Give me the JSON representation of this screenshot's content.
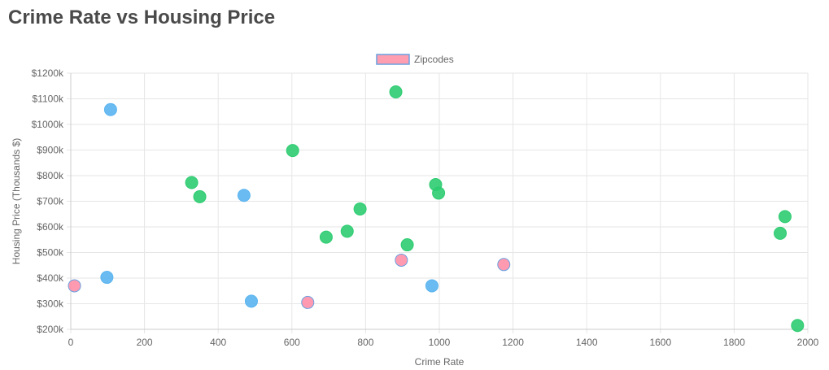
{
  "page": {
    "title": "Crime Rate vs Housing Price"
  },
  "chart_data": {
    "type": "scatter",
    "xlabel": "Crime Rate",
    "ylabel": "Housing Price (Thousands $)",
    "xlim": [
      0,
      2000
    ],
    "ylim": [
      200,
      1200
    ],
    "x_ticks": [
      0,
      200,
      400,
      600,
      800,
      1000,
      1200,
      1400,
      1600,
      1800,
      2000
    ],
    "x_tick_labels": [
      "0",
      "200",
      "400",
      "600",
      "800",
      "1000",
      "1200",
      "1400",
      "1600",
      "1800",
      "2000"
    ],
    "y_ticks": [
      200,
      300,
      400,
      500,
      600,
      700,
      800,
      900,
      1000,
      1100,
      1200
    ],
    "y_tick_labels": [
      "$200k",
      "$300k",
      "$400k",
      "$500k",
      "$600k",
      "$700k",
      "$800k",
      "$900k",
      "$1000k",
      "$1100k",
      "$1200k"
    ],
    "grid": true,
    "legend": {
      "position": "top",
      "label": "Zipcodes",
      "color": "#ff9db1",
      "border_color": "#6aa1e0"
    },
    "colors": {
      "blue": "#5ab4f0",
      "green": "#2ecc71",
      "pink": "#ff8fa8"
    },
    "series": [
      {
        "name": "Zipcodes",
        "points": [
          {
            "x": 10,
            "y": 370,
            "color": "pink"
          },
          {
            "x": 98,
            "y": 403,
            "color": "blue"
          },
          {
            "x": 108,
            "y": 1058,
            "color": "blue"
          },
          {
            "x": 328,
            "y": 773,
            "color": "green"
          },
          {
            "x": 350,
            "y": 718,
            "color": "green"
          },
          {
            "x": 470,
            "y": 723,
            "color": "blue"
          },
          {
            "x": 490,
            "y": 310,
            "color": "blue"
          },
          {
            "x": 602,
            "y": 898,
            "color": "green"
          },
          {
            "x": 643,
            "y": 305,
            "color": "pink"
          },
          {
            "x": 693,
            "y": 560,
            "color": "green"
          },
          {
            "x": 750,
            "y": 583,
            "color": "green"
          },
          {
            "x": 785,
            "y": 670,
            "color": "green"
          },
          {
            "x": 882,
            "y": 1127,
            "color": "green"
          },
          {
            "x": 897,
            "y": 470,
            "color": "pink"
          },
          {
            "x": 913,
            "y": 530,
            "color": "green"
          },
          {
            "x": 980,
            "y": 370,
            "color": "blue"
          },
          {
            "x": 990,
            "y": 765,
            "color": "green"
          },
          {
            "x": 998,
            "y": 732,
            "color": "green"
          },
          {
            "x": 1175,
            "y": 453,
            "color": "pink"
          },
          {
            "x": 1925,
            "y": 575,
            "color": "green"
          },
          {
            "x": 1938,
            "y": 640,
            "color": "green"
          },
          {
            "x": 1972,
            "y": 215,
            "color": "green"
          }
        ]
      }
    ]
  }
}
